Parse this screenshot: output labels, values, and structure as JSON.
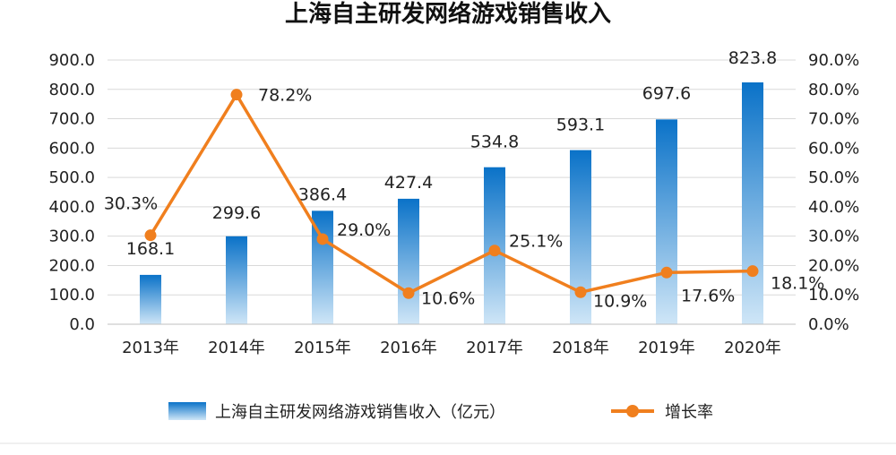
{
  "chart_data": {
    "type": "bar",
    "title": "上海自主研发网络游戏销售收入",
    "categories": [
      "2013年",
      "2014年",
      "2015年",
      "2016年",
      "2017年",
      "2018年",
      "2019年",
      "2020年"
    ],
    "series": [
      {
        "name": "上海自主研发网络游戏销售收入（亿元）",
        "type": "bar",
        "axis": "left",
        "values": [
          168.1,
          299.6,
          386.4,
          427.4,
          534.8,
          593.1,
          697.6,
          823.8
        ],
        "labels": [
          "168.1",
          "299.6",
          "386.4",
          "427.4",
          "534.8",
          "593.1",
          "697.6",
          "823.8"
        ]
      },
      {
        "name": "增长率",
        "type": "line",
        "axis": "right",
        "values": [
          30.3,
          78.2,
          29.0,
          10.6,
          25.1,
          10.9,
          17.6,
          18.1
        ],
        "labels": [
          "30.3%",
          "78.2%",
          "29.0%",
          "10.6%",
          "25.1%",
          "10.9%",
          "17.6%",
          "18.1%"
        ]
      }
    ],
    "y_left": {
      "ylim": [
        0,
        900
      ],
      "ticks": [
        "0.0",
        "100.0",
        "200.0",
        "300.0",
        "400.0",
        "500.0",
        "600.0",
        "700.0",
        "800.0",
        "900.0"
      ]
    },
    "y_right": {
      "ylim": [
        0,
        90
      ],
      "ticks": [
        "0.0%",
        "10.0%",
        "20.0%",
        "30.0%",
        "40.0%",
        "50.0%",
        "60.0%",
        "70.0%",
        "80.0%",
        "90.0%"
      ]
    },
    "grid": true,
    "legend_position": "bottom",
    "colors": {
      "bar_top": "#0a72c8",
      "bar_bottom": "#cfe6f7",
      "line": "#f07f1e",
      "grid": "#d9d9d9"
    }
  }
}
